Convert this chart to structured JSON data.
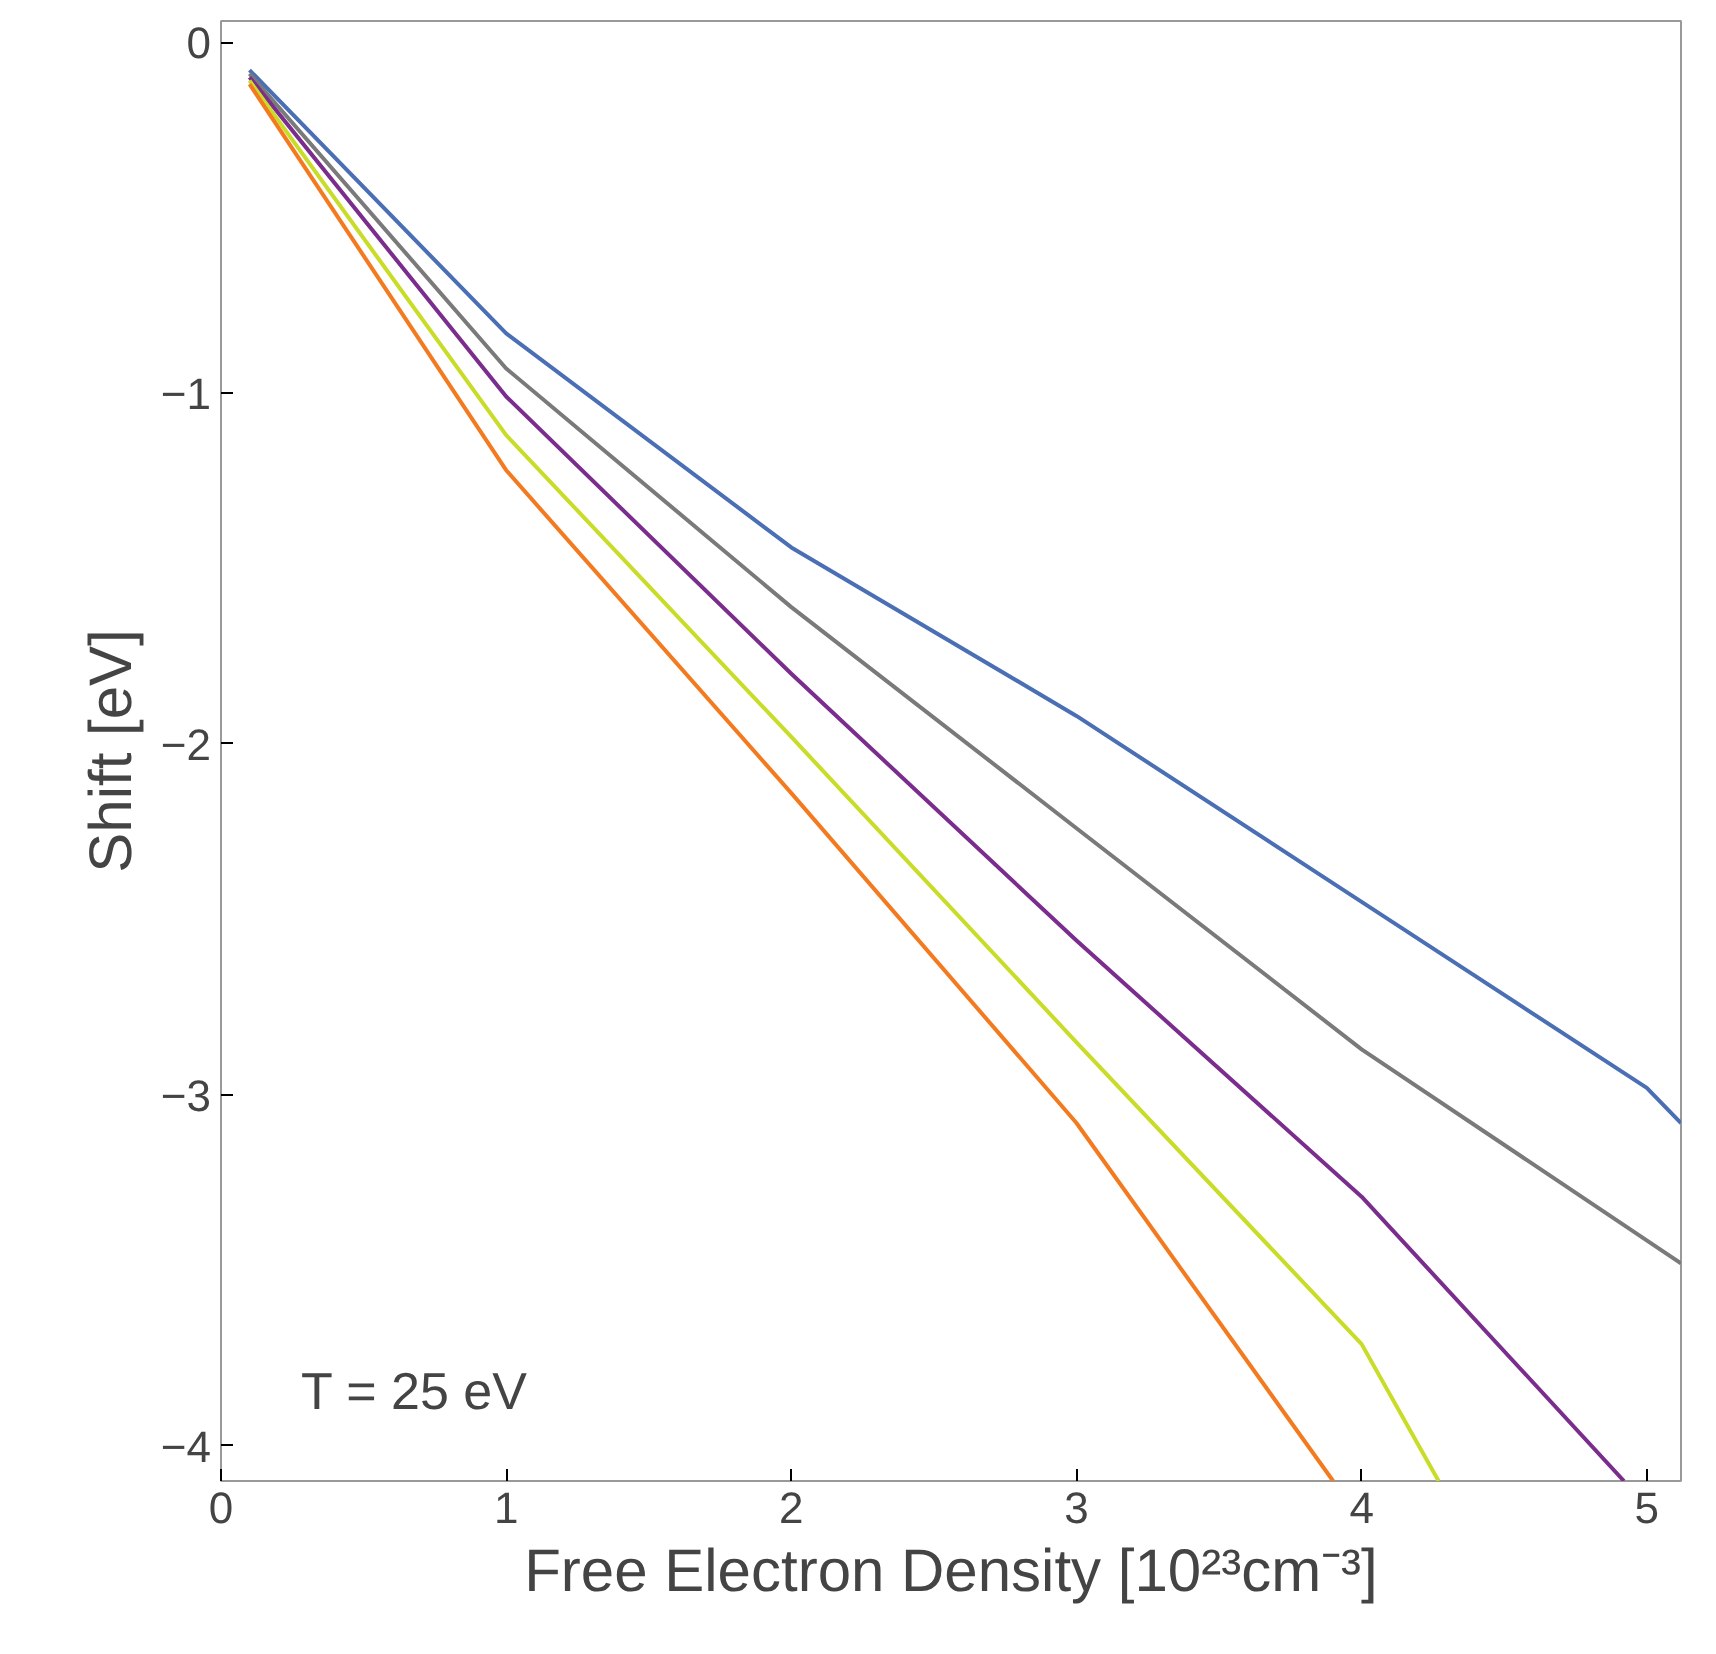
{
  "chart_data": {
    "type": "line",
    "xlabel": "Free Electron Density [10²³cm⁻³]",
    "ylabel": "Shift [eV]",
    "annotations": [
      "T = 25 eV"
    ],
    "xlim": [
      0,
      5.12
    ],
    "ylim": [
      -4.1,
      0.06
    ],
    "xticks": [
      0,
      1,
      2,
      3,
      4,
      5
    ],
    "yticks": [
      0,
      -1,
      -2,
      -3,
      -4
    ],
    "grid": false,
    "marker": "none",
    "line_style": "solid",
    "series": [
      {
        "color": "#4a6fb5",
        "x": [
          0.1,
          1,
          2,
          3,
          4,
          5,
          5.12
        ],
        "values": [
          -0.08,
          -0.83,
          -1.44,
          -1.92,
          -2.45,
          -2.98,
          -3.08
        ]
      },
      {
        "color": "#7a7a7a",
        "x": [
          0.1,
          1,
          2,
          3,
          4,
          5.12
        ],
        "values": [
          -0.09,
          -0.93,
          -1.61,
          -2.24,
          -2.87,
          -3.48
        ]
      },
      {
        "color": "#7b2d8e",
        "x": [
          0.1,
          1,
          2,
          3,
          4,
          4.92
        ],
        "values": [
          -0.1,
          -1.01,
          -1.8,
          -2.56,
          -3.29,
          -4.1
        ]
      },
      {
        "color": "#c8dc28",
        "x": [
          0.1,
          1,
          2,
          3,
          4,
          4.27
        ],
        "values": [
          -0.11,
          -1.12,
          -1.98,
          -2.85,
          -3.71,
          -4.1
        ]
      },
      {
        "color": "#f47a20",
        "x": [
          0.1,
          1,
          2,
          3,
          3.9
        ],
        "values": [
          -0.12,
          -1.22,
          -2.14,
          -3.08,
          -4.1
        ]
      }
    ]
  }
}
